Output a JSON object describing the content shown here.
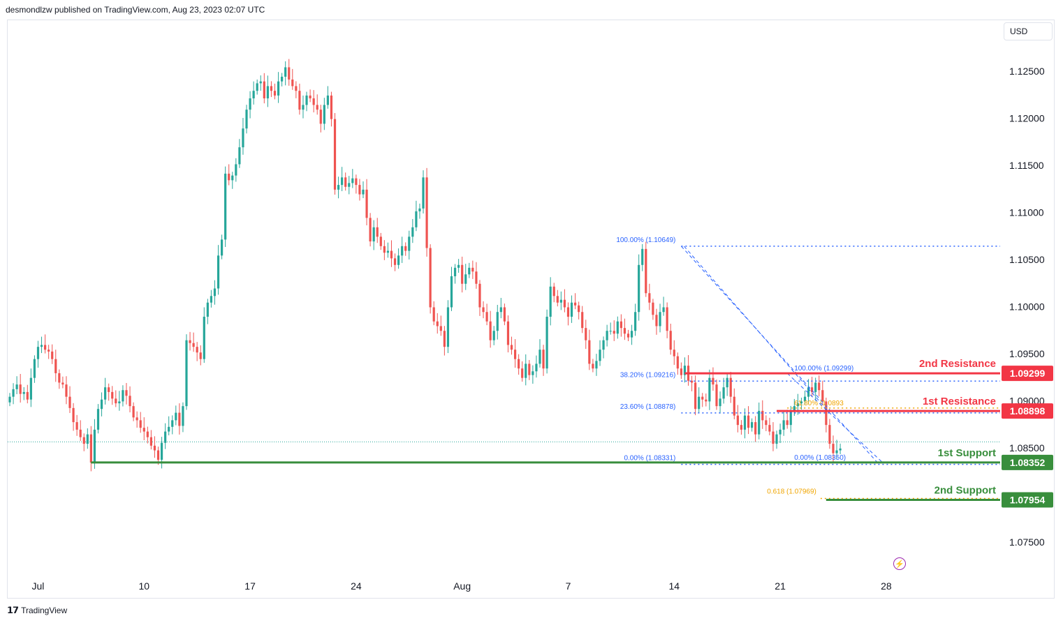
{
  "header": {
    "published": "desmondlzw published on TradingView.com, Aug 23, 2023 02:07 UTC"
  },
  "footer": {
    "brand": "TradingView",
    "logo_icon": "tradingview-logo-icon"
  },
  "currency": "USD",
  "chart_data": {
    "type": "candlestick",
    "symbol": "",
    "y_range": [
      1.0715,
      1.1305
    ],
    "y_ticks": [
      {
        "value": 1.125,
        "label": "1.12500"
      },
      {
        "value": 1.12,
        "label": "1.12000"
      },
      {
        "value": 1.115,
        "label": "1.11500"
      },
      {
        "value": 1.11,
        "label": "1.11000"
      },
      {
        "value": 1.105,
        "label": "1.10500"
      },
      {
        "value": 1.1,
        "label": "1.10000"
      },
      {
        "value": 1.095,
        "label": "1.09500"
      },
      {
        "value": 1.09,
        "label": "1.09000"
      },
      {
        "value": 1.085,
        "label": "1.08500"
      },
      {
        "value": 1.075,
        "label": "1.07500"
      }
    ],
    "x_ticks": [
      {
        "i": 8,
        "label": "Jul"
      },
      {
        "i": 38,
        "label": "10"
      },
      {
        "i": 68,
        "label": "17"
      },
      {
        "i": 98,
        "label": "24"
      },
      {
        "i": 128,
        "label": "Aug"
      },
      {
        "i": 158,
        "label": "7"
      },
      {
        "i": 188,
        "label": "14"
      },
      {
        "i": 218,
        "label": "21"
      },
      {
        "i": 248,
        "label": "28"
      }
    ],
    "closes": [
      1.0905,
      1.0913,
      1.0918,
      1.0908,
      1.091,
      1.0902,
      1.0925,
      1.0945,
      1.0958,
      1.096,
      1.0955,
      1.0953,
      1.0945,
      1.093,
      1.092,
      1.0918,
      1.0905,
      1.0893,
      1.0878,
      1.087,
      1.0862,
      1.0855,
      1.0865,
      1.0835,
      1.087,
      1.0892,
      1.0902,
      1.0915,
      1.091,
      1.0903,
      1.0898,
      1.09,
      1.0912,
      1.0906,
      1.0895,
      1.0883,
      1.088,
      1.0872,
      1.0868,
      1.0862,
      1.0853,
      1.0848,
      1.0838,
      1.0856,
      1.0868,
      1.0873,
      1.088,
      1.0888,
      1.0874,
      1.0895,
      1.0965,
      1.0962,
      1.0958,
      1.0952,
      1.0945,
      1.099,
      1.1005,
      1.1012,
      1.102,
      1.1055,
      1.1072,
      1.1142,
      1.1135,
      1.114,
      1.1152,
      1.117,
      1.119,
      1.121,
      1.1222,
      1.123,
      1.1238,
      1.124,
      1.1222,
      1.1235,
      1.123,
      1.1225,
      1.124,
      1.1245,
      1.1255,
      1.1242,
      1.1235,
      1.123,
      1.121,
      1.1215,
      1.1225,
      1.1222,
      1.1215,
      1.121,
      1.1195,
      1.1215,
      1.1225,
      1.12,
      1.1125,
      1.113,
      1.1138,
      1.1128,
      1.1132,
      1.1137,
      1.113,
      1.112,
      1.1125,
      1.1095,
      1.107,
      1.1085,
      1.1075,
      1.1065,
      1.1058,
      1.106,
      1.1052,
      1.1045,
      1.1055,
      1.1065,
      1.106,
      1.1075,
      1.1085,
      1.1102,
      1.1105,
      1.1138,
      1.1063,
      1.1,
      1.0985,
      1.098,
      1.0975,
      1.0958,
      1.1,
      1.1033,
      1.1042,
      1.1045,
      1.1025,
      1.1035,
      1.1042,
      1.1038,
      1.1025,
      1.1,
      1.0995,
      1.0985,
      1.0965,
      1.0975,
      1.0995,
      1.1,
      1.0985,
      1.096,
      1.0955,
      1.0945,
      1.0935,
      1.0925,
      1.094,
      1.0928,
      1.0932,
      1.094,
      1.0955,
      1.0935,
      1.099,
      1.1022,
      1.1012,
      1.1005,
      1.1008,
      1.1,
      1.099,
      1.1005,
      1.1002,
      1.0995,
      1.0978,
      1.0965,
      1.094,
      1.0935,
      1.0943,
      1.0955,
      1.0965,
      1.0975,
      1.0975,
      1.0972,
      1.0985,
      1.0978,
      1.0972,
      1.0968,
      1.0975,
      1.0995,
      1.1045,
      1.1062,
      1.1015,
      1.1005,
      1.0992,
      1.098,
      1.0995,
      1.1,
      1.0975,
      1.0955,
      1.0948,
      1.0935,
      1.0928,
      1.0938,
      1.0922,
      1.092,
      1.0892,
      1.0905,
      1.0902,
      1.09,
      1.0925,
      1.0918,
      1.0895,
      1.0903,
      1.0915,
      1.0925,
      1.0905,
      1.0885,
      1.0875,
      1.087,
      1.0885,
      1.0872,
      1.0878,
      1.0865,
      1.089,
      1.088,
      1.0875,
      1.0868,
      1.0855,
      1.0865,
      1.087,
      1.088,
      1.0875,
      1.089,
      1.0895,
      1.0898,
      1.09,
      1.0905,
      1.0915,
      1.091,
      1.092,
      1.0912,
      1.09,
      1.0875,
      1.0855,
      1.0845,
      1.0848,
      1.085
    ],
    "horizontal_levels": [
      {
        "name": "2nd Resistance",
        "value": 1.09299,
        "label": "1.09299",
        "color": "#f23645",
        "from_i": 191
      },
      {
        "name": "1st Resistance",
        "value": 1.08898,
        "label": "1.08898",
        "color": "#f23645",
        "from_i": 217
      },
      {
        "name": "1st Support",
        "value": 1.08352,
        "label": "1.08352",
        "color": "#388e3c",
        "from_i": 23
      },
      {
        "name": "2nd Support",
        "value": 1.07954,
        "label": "1.07954",
        "color": "#388e3c",
        "from_i": 231
      }
    ],
    "fib_large": {
      "color": "#2962ff",
      "from_i": 190,
      "to_i": 260,
      "levels": [
        {
          "value": 1.10649,
          "label": "100.00% (1.10649)"
        },
        {
          "value": 1.09216,
          "label": "38.20% (1.09216)"
        },
        {
          "value": 1.08878,
          "label": "23.60% (1.08878)"
        },
        {
          "value": 1.08331,
          "label": "0.00% (1.08331)"
        }
      ]
    },
    "fib_small": {
      "color": "#2962ff",
      "from_i": 220,
      "to_i": 260,
      "levels": [
        {
          "value": 1.09299,
          "label": "100.00% (1.09299)"
        },
        {
          "value": 1.0893,
          "label": "61.80% (1.0893"
        },
        {
          "value": 1.0835,
          "label": "0.00% (1.08350)"
        }
      ]
    },
    "fib_ext": {
      "value": 1.07969,
      "label": "0.618 (1.07969)",
      "color": "#f0a500",
      "from_i": 231,
      "to_i": 256
    },
    "last_price": 1.0857,
    "colors": {
      "up": "#26a69a",
      "down": "#ef5350",
      "grid": "#f0f3fa",
      "axis_text": "#131722"
    }
  }
}
